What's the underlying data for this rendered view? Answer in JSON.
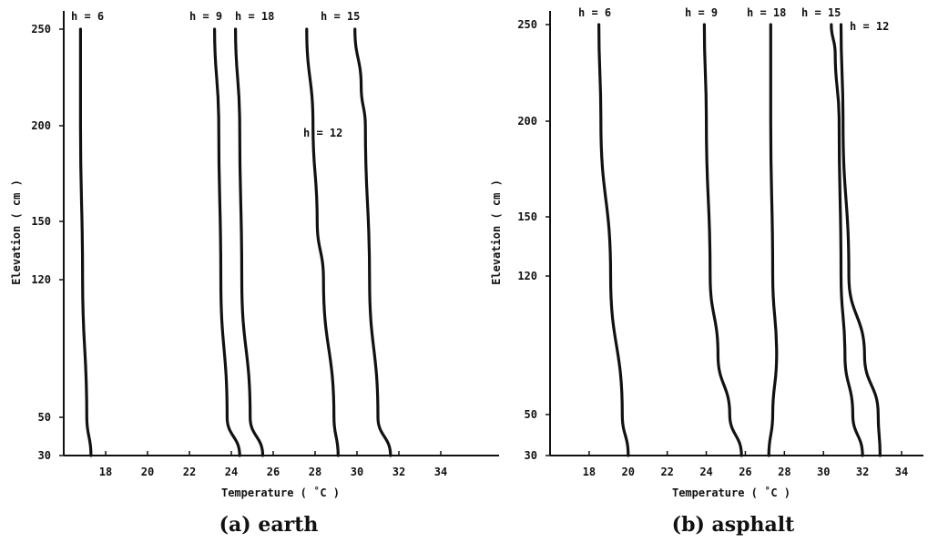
{
  "chart_data": [
    {
      "type": "line",
      "caption": "(a) earth",
      "xlabel": "Temperature ( ˚C )",
      "ylabel": "Elevation ( cm )",
      "xticks": [
        18,
        20,
        22,
        24,
        26,
        28,
        30,
        32,
        34
      ],
      "yticks": [
        30,
        50,
        120,
        150,
        200,
        250
      ],
      "series": [
        {
          "name": "h = 6",
          "points": [
            [
              17.3,
              30
            ],
            [
              17.1,
              50
            ],
            [
              16.9,
              120
            ],
            [
              16.8,
              200
            ],
            [
              16.8,
              250
            ]
          ]
        },
        {
          "name": "h = 9",
          "points": [
            [
              24.4,
              30
            ],
            [
              23.8,
              50
            ],
            [
              23.5,
              120
            ],
            [
              23.4,
              200
            ],
            [
              23.2,
              250
            ]
          ]
        },
        {
          "name": "h = 18",
          "points": [
            [
              25.5,
              30
            ],
            [
              24.9,
              50
            ],
            [
              24.5,
              120
            ],
            [
              24.4,
              200
            ],
            [
              24.2,
              250
            ]
          ]
        },
        {
          "name": "h = 15",
          "points": [
            [
              29.1,
              30
            ],
            [
              28.9,
              50
            ],
            [
              28.4,
              120
            ],
            [
              28.1,
              150
            ],
            [
              27.9,
              200
            ],
            [
              27.6,
              250
            ]
          ]
        },
        {
          "name": "h = 12",
          "points": [
            [
              31.6,
              30
            ],
            [
              31.0,
              50
            ],
            [
              30.6,
              120
            ],
            [
              30.4,
              200
            ],
            [
              30.2,
              220
            ],
            [
              29.9,
              250
            ]
          ]
        }
      ]
    },
    {
      "type": "line",
      "caption": "(b) asphalt",
      "xlabel": "Temperature ( ˚C )",
      "ylabel": "Elevation ( cm )",
      "xticks": [
        18,
        20,
        22,
        24,
        26,
        28,
        30,
        32,
        34
      ],
      "yticks": [
        30,
        50,
        120,
        150,
        200,
        250
      ],
      "series": [
        {
          "name": "h = 6",
          "points": [
            [
              20.0,
              30
            ],
            [
              19.7,
              50
            ],
            [
              19.1,
              120
            ],
            [
              18.6,
              200
            ],
            [
              18.5,
              250
            ]
          ]
        },
        {
          "name": "h = 9",
          "points": [
            [
              25.8,
              30
            ],
            [
              25.2,
              50
            ],
            [
              24.6,
              80
            ],
            [
              24.2,
              120
            ],
            [
              24.0,
              200
            ],
            [
              23.9,
              250
            ]
          ]
        },
        {
          "name": "h = 18",
          "points": [
            [
              27.2,
              30
            ],
            [
              27.4,
              50
            ],
            [
              27.6,
              80
            ],
            [
              27.4,
              120
            ],
            [
              27.3,
              200
            ],
            [
              27.3,
              250
            ]
          ]
        },
        {
          "name": "h = 15",
          "points": [
            [
              32.0,
              30
            ],
            [
              31.5,
              50
            ],
            [
              31.1,
              80
            ],
            [
              30.9,
              120
            ],
            [
              30.8,
              200
            ],
            [
              30.6,
              235
            ],
            [
              30.4,
              250
            ]
          ]
        },
        {
          "name": "h = 12",
          "points": [
            [
              32.9,
              30
            ],
            [
              32.8,
              50
            ],
            [
              32.1,
              80
            ],
            [
              31.3,
              120
            ],
            [
              31.0,
              200
            ],
            [
              30.9,
              250
            ]
          ]
        }
      ]
    }
  ]
}
